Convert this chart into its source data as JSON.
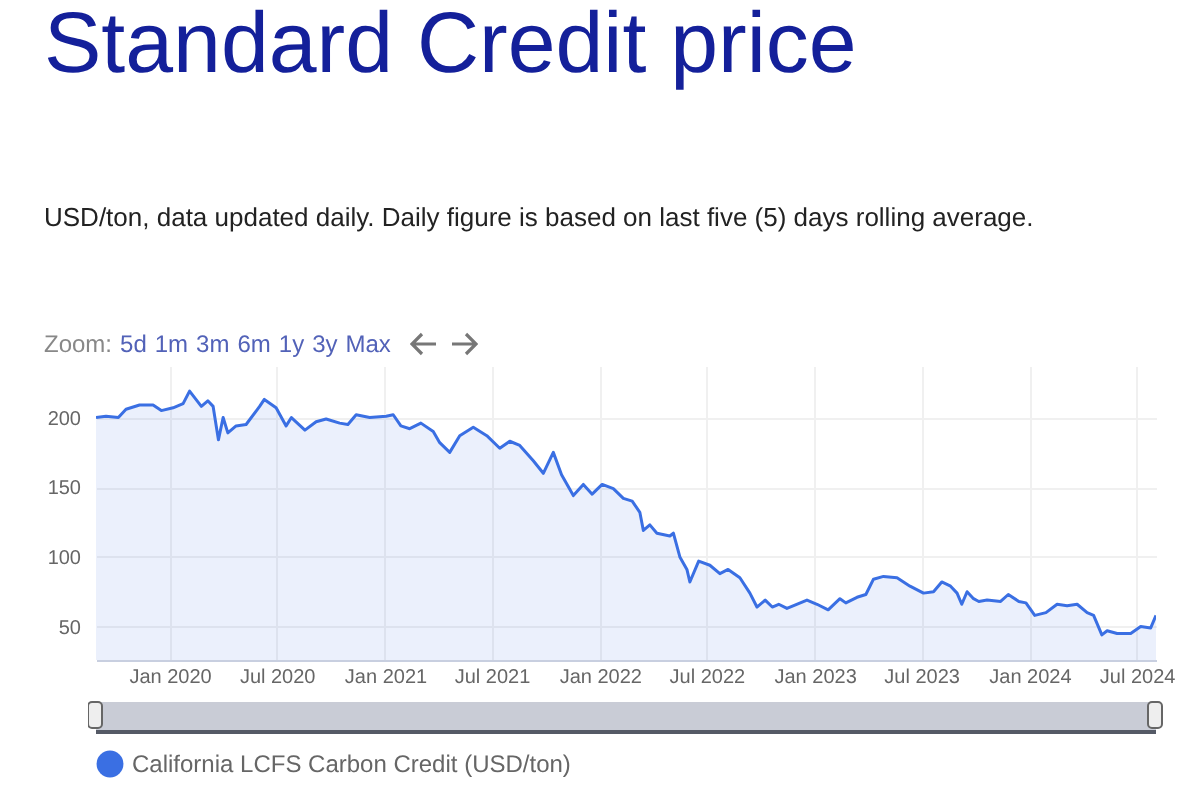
{
  "chart_data": {
    "type": "area",
    "title": "Standard Credit price",
    "subtitle": "USD/ton, data updated daily. Daily figure is based on last five (5) days rolling average.",
    "annotations": [
      "Zoom:",
      "5d",
      "1m",
      "3m",
      "6m",
      "1y",
      "3y",
      "Max"
    ],
    "x": [
      "2019-08-29",
      "2019-09-15",
      "2019-10-06",
      "2019-10-19",
      "2019-11-11",
      "2019-12-04",
      "2019-12-18",
      "2020-01-07",
      "2020-01-24",
      "2020-02-04",
      "2020-02-24",
      "2020-03-06",
      "2020-03-15",
      "2020-03-24",
      "2020-04-01",
      "2020-04-09",
      "2020-04-23",
      "2020-05-10",
      "2020-06-02",
      "2020-06-10",
      "2020-06-30",
      "2020-07-17",
      "2020-07-26",
      "2020-08-18",
      "2020-09-06",
      "2020-09-23",
      "2020-10-16",
      "2020-10-30",
      "2020-11-13",
      "2020-12-06",
      "2021-01-03",
      "2021-01-15",
      "2021-01-28",
      "2021-02-12",
      "2021-03-03",
      "2021-03-24",
      "2021-04-04",
      "2021-04-21",
      "2021-05-08",
      "2021-05-31",
      "2021-06-23",
      "2021-07-15",
      "2021-08-01",
      "2021-08-18",
      "2021-09-10",
      "2021-09-27",
      "2021-10-14",
      "2021-10-28",
      "2021-11-17",
      "2021-12-04",
      "2021-12-19",
      "2022-01-05",
      "2022-01-24",
      "2022-02-10",
      "2022-02-25",
      "2022-03-10",
      "2022-03-16",
      "2022-03-27",
      "2022-04-08",
      "2022-04-30",
      "2022-05-06",
      "2022-05-17",
      "2022-05-29",
      "2022-06-03",
      "2022-06-18",
      "2022-07-07",
      "2022-07-24",
      "2022-08-07",
      "2022-08-27",
      "2022-09-13",
      "2022-09-25",
      "2022-10-09",
      "2022-10-21",
      "2022-11-01",
      "2022-11-15",
      "2022-12-19",
      "2023-01-05",
      "2023-01-24",
      "2023-02-13",
      "2023-02-23",
      "2023-03-14",
      "2023-03-29",
      "2023-04-11",
      "2023-04-28",
      "2023-05-21",
      "2023-06-12",
      "2023-07-05",
      "2023-07-22",
      "2023-08-05",
      "2023-08-20",
      "2023-08-31",
      "2023-09-08",
      "2023-09-17",
      "2023-09-28",
      "2023-10-07",
      "2023-10-21",
      "2023-11-13",
      "2023-11-26",
      "2023-12-14",
      "2023-12-26",
      "2024-01-10",
      "2024-01-29",
      "2024-02-17",
      "2024-03-05",
      "2024-03-22",
      "2024-04-08",
      "2024-04-19",
      "2024-05-03",
      "2024-05-12",
      "2024-05-29",
      "2024-06-21",
      "2024-07-08",
      "2024-07-25",
      "2024-08-03"
    ],
    "series": [
      {
        "name": "California LCFS Carbon Credit (USD/ton)",
        "color": "#3a6fe3",
        "values": [
          200,
          201,
          200,
          206,
          209,
          209,
          205,
          207,
          210,
          219,
          208,
          212,
          208,
          184,
          200,
          189,
          194,
          195,
          208,
          213,
          207,
          194,
          200,
          191,
          197,
          199,
          196,
          195,
          202,
          200,
          201,
          202,
          194,
          192,
          196,
          190,
          182,
          175,
          187,
          193,
          187,
          178,
          183,
          180,
          169,
          160,
          175,
          159,
          144,
          152,
          145,
          152,
          149,
          142,
          140,
          132,
          119,
          123,
          117,
          115,
          117,
          100,
          91,
          82,
          97,
          94,
          88,
          91,
          85,
          74,
          64,
          69,
          64,
          66,
          63,
          69,
          66,
          62,
          70,
          67,
          71,
          73,
          84,
          86,
          85,
          79,
          74,
          75,
          82,
          79,
          74,
          66,
          75,
          70,
          68,
          69,
          68,
          73,
          68,
          67,
          58,
          60,
          66,
          65,
          66,
          60,
          58,
          44,
          47,
          45,
          45,
          50,
          49,
          58
        ]
      }
    ],
    "xlim": [
      "2019-08-29",
      "2024-08-03"
    ],
    "xticks": [
      {
        "value": "2020-01-01",
        "label": "Jan 2020"
      },
      {
        "value": "2020-07-01",
        "label": "Jul 2020"
      },
      {
        "value": "2021-01-01",
        "label": "Jan 2021"
      },
      {
        "value": "2021-07-01",
        "label": "Jul 2021"
      },
      {
        "value": "2022-01-01",
        "label": "Jan 2022"
      },
      {
        "value": "2022-07-01",
        "label": "Jul 2022"
      },
      {
        "value": "2023-01-01",
        "label": "Jan 2023"
      },
      {
        "value": "2023-07-01",
        "label": "Jul 2023"
      },
      {
        "value": "2024-01-01",
        "label": "Jan 2024"
      },
      {
        "value": "2024-07-01",
        "label": "Jul 2024"
      }
    ],
    "ylim": [
      26,
      237
    ],
    "yticks": [
      50,
      100,
      150,
      200
    ],
    "grid": true,
    "legend": "bottom"
  }
}
